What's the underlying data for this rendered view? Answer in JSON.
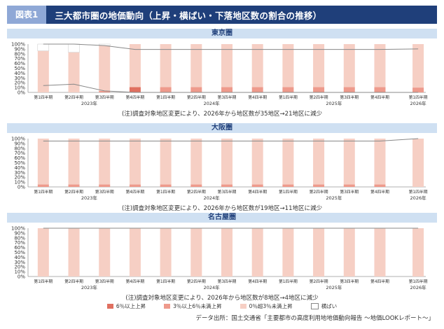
{
  "header": {
    "badge": "図表1",
    "title": "三大都市圏の地価動向（上昇・横ばい・下落地区数の割合の推移）"
  },
  "colors": {
    "up6": "#e07060",
    "up3": "#ee9a8c",
    "up0": "#f6cfc4",
    "flat": "#ffffff",
    "line": "#888888",
    "header": "#1f3f7a",
    "region": "#cfe0f2"
  },
  "axis": {
    "yticks": [
      "100%",
      "90%",
      "80%",
      "70%",
      "60%",
      "50%",
      "40%",
      "30%",
      "20%",
      "10%",
      "0%"
    ],
    "quarters": [
      "第1四半期",
      "第2四半期",
      "第3四半期",
      "第4四半期",
      "第1四半期",
      "第2四半期",
      "第3四半期",
      "第4四半期",
      "第1四半期",
      "第2四半期",
      "第3四半期",
      "第4四半期",
      "第1四半期"
    ],
    "years": [
      {
        "label": "2023年",
        "at": 1.5
      },
      {
        "label": "2024年",
        "at": 5.5
      },
      {
        "label": "2025年",
        "at": 9.5
      },
      {
        "label": "2026年",
        "at": 12
      }
    ]
  },
  "legend": [
    {
      "label": "6％以上上昇",
      "color": "#e07060"
    },
    {
      "label": "3％以上6％未満上昇",
      "color": "#ee9a8c"
    },
    {
      "label": "0％超3％未満上昇",
      "color": "#f6cfc4"
    },
    {
      "label": "横ばい",
      "color": "#ffffff"
    }
  ],
  "source": "データ出所：国土交通省「主要都市の高度利用地地価動向報告 ～地価LOOKレポート～」",
  "chart_data": [
    {
      "type": "bar",
      "stacked": true,
      "region": "東京圏",
      "note": "(注)調査対象地区変更により、2026年から地区数が35地区→21地区に減少",
      "categories": [
        "2023年第1四半期",
        "2023年第2四半期",
        "2023年第3四半期",
        "2023年第4四半期",
        "2024年第1四半期",
        "2024年第2四半期",
        "2024年第3四半期",
        "2024年第4四半期",
        "2025年第1四半期",
        "2025年第2四半期",
        "2025年第3四半期",
        "2025年第4四半期",
        "2026年第1四半期"
      ],
      "series": [
        {
          "name": "6％以上上昇",
          "values": [
            0,
            0,
            0,
            11,
            0,
            0,
            0,
            0,
            0,
            0,
            0,
            0,
            0
          ]
        },
        {
          "name": "3％以上6％未満上昇",
          "values": [
            0,
            0,
            3,
            0,
            11,
            11,
            11,
            11,
            11,
            11,
            11,
            11,
            10
          ]
        },
        {
          "name": "0％超3％未満上昇",
          "values": [
            86,
            83,
            94,
            89,
            89,
            89,
            89,
            89,
            89,
            89,
            89,
            89,
            90
          ]
        },
        {
          "name": "横ばい",
          "values": [
            14,
            17,
            3,
            0,
            0,
            0,
            0,
            0,
            0,
            0,
            0,
            0,
            0
          ]
        }
      ],
      "ylim": [
        0,
        100
      ]
    },
    {
      "type": "bar",
      "stacked": true,
      "region": "大阪圏",
      "note": "(注)調査対象地区変更により、2026年から地区数が19地区→11地区に減少",
      "categories": [
        "2023年第1四半期",
        "2023年第2四半期",
        "2023年第3四半期",
        "2023年第4四半期",
        "2024年第1四半期",
        "2024年第2四半期",
        "2024年第3四半期",
        "2024年第4四半期",
        "2025年第1四半期",
        "2025年第2四半期",
        "2025年第3四半期",
        "2025年第4四半期",
        "2026年第1四半期"
      ],
      "series": [
        {
          "name": "6％以上上昇",
          "values": [
            0,
            0,
            0,
            0,
            0,
            0,
            0,
            0,
            0,
            0,
            0,
            0,
            0
          ]
        },
        {
          "name": "3％以上6％未満上昇",
          "values": [
            5,
            5,
            5,
            5,
            5,
            5,
            5,
            5,
            5,
            5,
            5,
            5,
            0
          ]
        },
        {
          "name": "0％超3％未満上昇",
          "values": [
            95,
            95,
            95,
            95,
            95,
            95,
            95,
            95,
            95,
            95,
            95,
            95,
            100
          ]
        },
        {
          "name": "横ばい",
          "values": [
            0,
            0,
            0,
            0,
            0,
            0,
            0,
            0,
            0,
            0,
            0,
            0,
            0
          ]
        }
      ],
      "ylim": [
        0,
        100
      ]
    },
    {
      "type": "bar",
      "stacked": true,
      "region": "名古屋圏",
      "note": "(注)調査対象地区変更により、2026年から地区数が8地区→4地区に減少",
      "categories": [
        "2023年第1四半期",
        "2023年第2四半期",
        "2023年第3四半期",
        "2023年第4四半期",
        "2024年第1四半期",
        "2024年第2四半期",
        "2024年第3四半期",
        "2024年第4四半期",
        "2025年第1四半期",
        "2025年第2四半期",
        "2025年第3四半期",
        "2025年第4四半期",
        "2026年第1四半期"
      ],
      "series": [
        {
          "name": "6％以上上昇",
          "values": [
            0,
            0,
            0,
            0,
            0,
            0,
            0,
            0,
            0,
            0,
            0,
            0,
            0
          ]
        },
        {
          "name": "3％以上6％未満上昇",
          "values": [
            0,
            0,
            0,
            0,
            0,
            0,
            0,
            0,
            0,
            0,
            0,
            0,
            0
          ]
        },
        {
          "name": "0％超3％未満上昇",
          "values": [
            100,
            100,
            100,
            100,
            100,
            100,
            100,
            100,
            100,
            100,
            100,
            100,
            100
          ]
        },
        {
          "name": "横ばい",
          "values": [
            0,
            0,
            0,
            0,
            0,
            0,
            0,
            0,
            0,
            0,
            0,
            0,
            0
          ]
        }
      ],
      "ylim": [
        0,
        100
      ]
    }
  ]
}
